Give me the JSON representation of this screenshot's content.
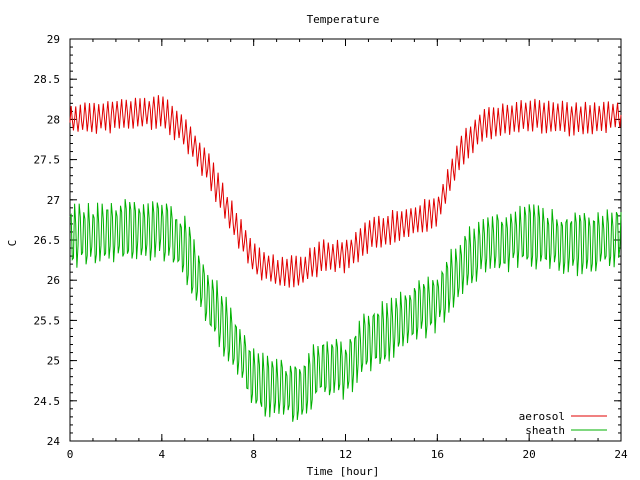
{
  "chart_data": {
    "type": "line",
    "title": "Temperature",
    "xlabel": "Time [hour]",
    "ylabel": "C",
    "xlim": [
      0,
      24
    ],
    "ylim": [
      24,
      29
    ],
    "x_ticks": [
      0,
      4,
      8,
      12,
      16,
      20,
      24
    ],
    "x_minor_step": 1,
    "y_ticks": [
      "24",
      "24.5",
      "25",
      "25.5",
      "26",
      "26.5",
      "27",
      "27.5",
      "28",
      "28.5",
      "29"
    ],
    "y_minor_step": 0.1,
    "grid": false,
    "legend_position": "bottom-right",
    "sample_step_hours": 0.05,
    "series": [
      {
        "name": "aerosol",
        "color": "#e00000",
        "oscillation_period_hours": 0.2,
        "oscillation_amplitude": 0.18,
        "baseline": [
          {
            "x": 0,
            "y": 28.0
          },
          {
            "x": 2,
            "y": 28.05
          },
          {
            "x": 4,
            "y": 28.1
          },
          {
            "x": 5,
            "y": 27.85
          },
          {
            "x": 6,
            "y": 27.4
          },
          {
            "x": 7,
            "y": 26.8
          },
          {
            "x": 8,
            "y": 26.25
          },
          {
            "x": 9,
            "y": 26.1
          },
          {
            "x": 10,
            "y": 26.1
          },
          {
            "x": 11,
            "y": 26.3
          },
          {
            "x": 12,
            "y": 26.3
          },
          {
            "x": 13,
            "y": 26.55
          },
          {
            "x": 14,
            "y": 26.65
          },
          {
            "x": 15,
            "y": 26.75
          },
          {
            "x": 16,
            "y": 26.85
          },
          {
            "x": 17,
            "y": 27.6
          },
          {
            "x": 18,
            "y": 27.95
          },
          {
            "x": 20,
            "y": 28.05
          },
          {
            "x": 22,
            "y": 28.0
          },
          {
            "x": 24,
            "y": 28.05
          }
        ]
      },
      {
        "name": "sheath",
        "color": "#00b000",
        "oscillation_period_hours": 0.2,
        "oscillation_amplitude": 0.38,
        "baseline": [
          {
            "x": 0,
            "y": 26.55
          },
          {
            "x": 2,
            "y": 26.6
          },
          {
            "x": 4,
            "y": 26.65
          },
          {
            "x": 5,
            "y": 26.4
          },
          {
            "x": 6,
            "y": 25.8
          },
          {
            "x": 7,
            "y": 25.3
          },
          {
            "x": 8,
            "y": 24.75
          },
          {
            "x": 9,
            "y": 24.65
          },
          {
            "x": 10,
            "y": 24.6
          },
          {
            "x": 11,
            "y": 24.95
          },
          {
            "x": 12,
            "y": 24.9
          },
          {
            "x": 13,
            "y": 25.25
          },
          {
            "x": 14,
            "y": 25.4
          },
          {
            "x": 15,
            "y": 25.6
          },
          {
            "x": 16,
            "y": 25.75
          },
          {
            "x": 17,
            "y": 26.15
          },
          {
            "x": 18,
            "y": 26.45
          },
          {
            "x": 20,
            "y": 26.55
          },
          {
            "x": 22,
            "y": 26.45
          },
          {
            "x": 24,
            "y": 26.55
          }
        ]
      }
    ]
  }
}
